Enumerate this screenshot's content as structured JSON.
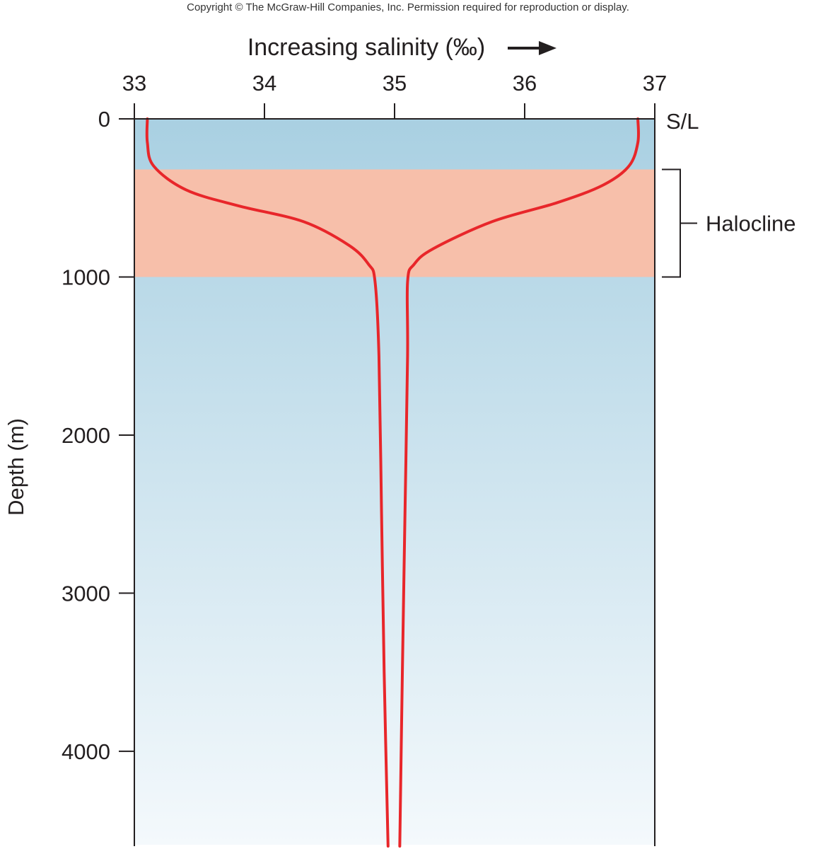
{
  "copyright": "Copyright © The McGraw-Hill Companies, Inc. Permission required for reproduction or display.",
  "chart_data": {
    "type": "line",
    "title": "",
    "xlabel": "Increasing salinity (‰)",
    "ylabel": "Depth (m)",
    "xlim": [
      33,
      37
    ],
    "ylim": [
      0,
      4600
    ],
    "x_ticks": [
      "33",
      "34",
      "35",
      "36",
      "37"
    ],
    "y_ticks": [
      "0",
      "1000",
      "2000",
      "3000",
      "4000"
    ],
    "y_inverted": true,
    "surface_label": "S/L",
    "annotations": [
      {
        "label": "Halocline",
        "from_depth": 320,
        "to_depth": 1000,
        "color": "#f7bfaa"
      }
    ],
    "series": [
      {
        "color": "#e8262a",
        "points": [
          [
            33.1,
            0
          ],
          [
            33.1,
            150
          ],
          [
            33.15,
            300
          ],
          [
            33.4,
            450
          ],
          [
            33.8,
            550
          ],
          [
            34.3,
            650
          ],
          [
            34.65,
            800
          ],
          [
            34.8,
            920
          ],
          [
            34.85,
            1030
          ],
          [
            34.88,
            1500
          ],
          [
            34.9,
            2500
          ],
          [
            34.92,
            3500
          ],
          [
            34.95,
            4600
          ]
        ]
      },
      {
        "color": "#e8262a",
        "points": [
          [
            36.87,
            0
          ],
          [
            36.87,
            150
          ],
          [
            36.8,
            300
          ],
          [
            36.6,
            420
          ],
          [
            36.25,
            530
          ],
          [
            35.75,
            650
          ],
          [
            35.3,
            820
          ],
          [
            35.15,
            920
          ],
          [
            35.1,
            1030
          ],
          [
            35.1,
            1500
          ],
          [
            35.08,
            2500
          ],
          [
            35.06,
            3500
          ],
          [
            35.04,
            4600
          ]
        ]
      }
    ],
    "colors": {
      "surface_water": "#a9d0e2",
      "deep_water": "#f4f9fc",
      "curve": "#e8262a"
    }
  }
}
